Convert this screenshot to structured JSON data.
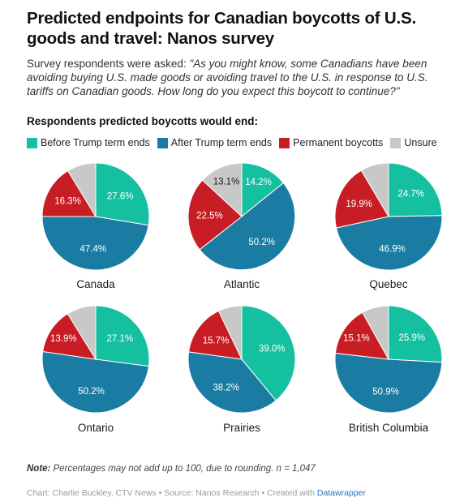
{
  "title": "Predicted endpoints for Canadian boycotts of U.S. goods and travel: Nanos survey",
  "description_prefix": "Survey respondents were asked: ",
  "description_quote": "\"As you might know, some Canadians have been avoiding buying U.S. made goods or avoiding travel to the U.S. in response to U.S. tariffs on Canadian goods. How long do you expect this boycott to continue?\"",
  "subtitle": "Respondents predicted boycotts would end:",
  "note_label": "Note:",
  "note_text": " Percentages may not add up to 100, due to rounding. n = 1,047",
  "credit_text": "Chart: Charlie Buckley, CTV News • Source: Nanos Research • Created with ",
  "credit_link": "Datawrapper",
  "colors": {
    "before": "#15c0a0",
    "after": "#1b7ca3",
    "permanent": "#c81d25",
    "unsure": "#c8c8c8"
  },
  "chart_data": {
    "type": "pie",
    "legend_position": "top",
    "series": [
      {
        "name": "Before Trump term ends",
        "key": "before"
      },
      {
        "name": "After Trump term ends",
        "key": "after"
      },
      {
        "name": "Permanent boycotts",
        "key": "permanent"
      },
      {
        "name": "Unsure",
        "key": "unsure"
      }
    ],
    "charts": [
      {
        "region": "Canada",
        "values": [
          27.6,
          47.4,
          16.3,
          8.7
        ],
        "labels": [
          "27.6%",
          "47.4%",
          "16.3%",
          ""
        ]
      },
      {
        "region": "Atlantic",
        "values": [
          14.2,
          50.2,
          22.5,
          13.1
        ],
        "labels": [
          "14.2%",
          "50.2%",
          "22.5%",
          "13.1%"
        ]
      },
      {
        "region": "Quebec",
        "values": [
          24.7,
          46.9,
          19.9,
          8.5
        ],
        "labels": [
          "24.7%",
          "46.9%",
          "19.9%",
          ""
        ]
      },
      {
        "region": "Ontario",
        "values": [
          27.1,
          50.2,
          13.9,
          8.8
        ],
        "labels": [
          "27.1%",
          "50.2%",
          "13.9%",
          ""
        ]
      },
      {
        "region": "Prairies",
        "values": [
          39.0,
          38.2,
          15.7,
          7.1
        ],
        "labels": [
          "39.0%",
          "38.2%",
          "15.7%",
          ""
        ]
      },
      {
        "region": "British Columbia",
        "values": [
          25.9,
          50.9,
          15.1,
          8.1
        ],
        "labels": [
          "25.9%",
          "50.9%",
          "15.1%",
          ""
        ]
      }
    ]
  }
}
